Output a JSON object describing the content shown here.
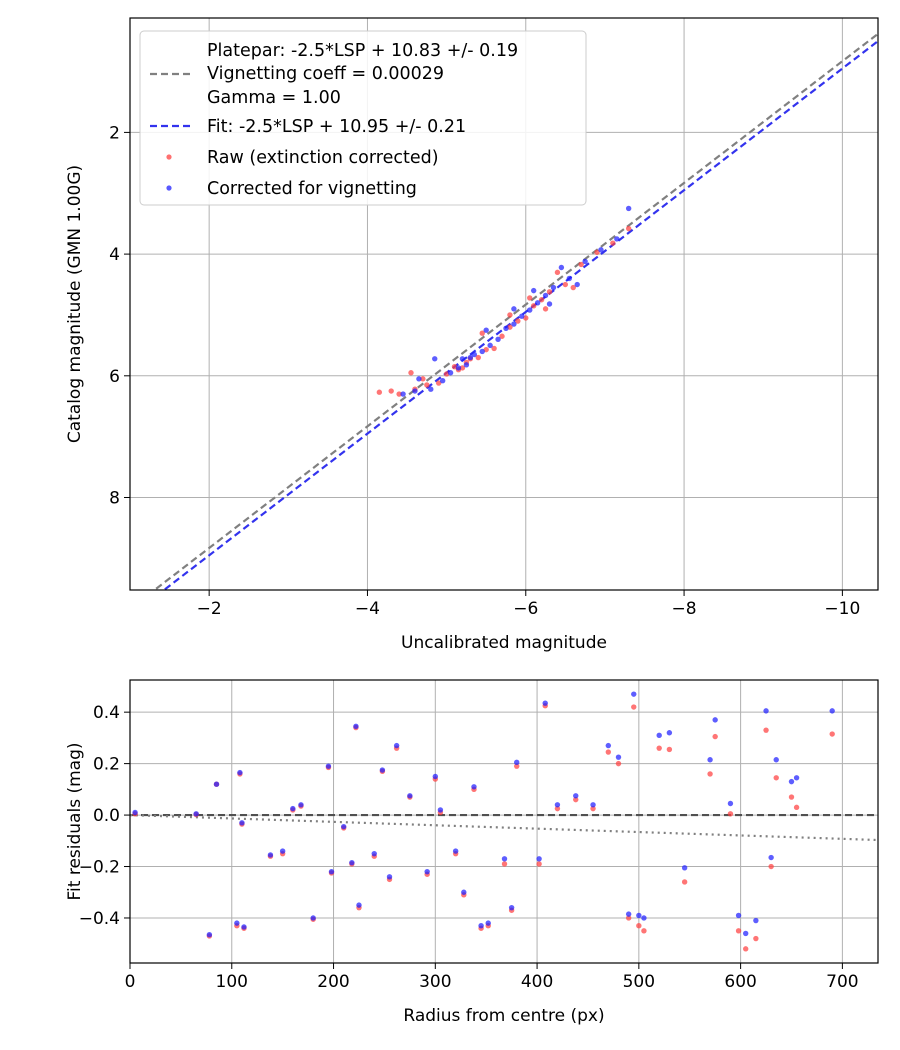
{
  "chart_data": [
    {
      "type": "scatter",
      "xlabel": "Uncalibrated magnitude",
      "ylabel": "Catalog magnitude (GMN 1.00G)",
      "xlim": [
        -1.0,
        -10.45
      ],
      "ylim": [
        9.52,
        0.12
      ],
      "xticks": [
        -2,
        -4,
        -6,
        -8,
        -10
      ],
      "xtick_labels": [
        "−2",
        "−4",
        "−6",
        "−8",
        "−10"
      ],
      "yticks": [
        2,
        4,
        6,
        8
      ],
      "ytick_labels": [
        "2",
        "4",
        "6",
        "8"
      ],
      "grid": true,
      "legend_position": "top-left",
      "legend": {
        "platepar_lines": [
          "Platepar: -2.5*LSP + 10.83 +/- 0.19",
          "Vignetting coeff = 0.00029",
          "Gamma = 1.00"
        ],
        "fit": "Fit: -2.5*LSP + 10.95 +/- 0.21",
        "raw": "Raw (extinction corrected)",
        "corrected": "Corrected for vignetting"
      },
      "lines": [
        {
          "name": "Platepar",
          "slope": -2.5,
          "coef": 0.4,
          "zero_point": 10.83,
          "color": "#808080",
          "style": "dashed"
        },
        {
          "name": "Fit",
          "slope": -2.5,
          "coef": 0.4,
          "zero_point": 10.95,
          "color": "#3333ee",
          "style": "dashed"
        }
      ],
      "series": [
        {
          "name": "Raw (extinction corrected)",
          "color": "#ff4040",
          "x": [
            -4.15,
            -4.3,
            -4.6,
            -4.75,
            -4.9,
            -5.0,
            -5.1,
            -5.2,
            -5.3,
            -5.4,
            -5.5,
            -5.6,
            -5.7,
            -5.8,
            -5.9,
            -6.0,
            -6.1,
            -6.2,
            -6.3,
            -6.5,
            -6.7,
            -6.9,
            -7.1,
            -7.3,
            -4.4,
            -4.7,
            -5.25,
            -5.8,
            -6.05,
            -6.4,
            -4.55,
            -5.15,
            -5.45,
            -6.25,
            -6.6
          ],
          "y": [
            6.27,
            6.25,
            6.22,
            6.15,
            6.12,
            5.97,
            5.85,
            5.87,
            5.72,
            5.7,
            5.57,
            5.55,
            5.35,
            5.2,
            5.1,
            5.05,
            4.85,
            4.75,
            4.62,
            4.5,
            4.17,
            3.97,
            3.82,
            3.58,
            6.3,
            6.05,
            5.78,
            5.0,
            4.72,
            4.3,
            5.95,
            5.9,
            5.3,
            4.9,
            4.55
          ]
        },
        {
          "name": "Corrected for vignetting",
          "color": "#2020ff",
          "x": [
            -4.45,
            -4.6,
            -4.8,
            -4.95,
            -5.05,
            -5.15,
            -5.25,
            -5.35,
            -5.45,
            -5.55,
            -5.65,
            -5.75,
            -5.85,
            -5.95,
            -6.05,
            -6.15,
            -6.25,
            -6.35,
            -6.55,
            -6.75,
            -6.95,
            -7.15,
            -7.3,
            -4.65,
            -4.85,
            -5.3,
            -5.85,
            -6.1,
            -6.45,
            -5.2,
            -5.5,
            -6.3,
            -6.65
          ],
          "y": [
            6.3,
            6.25,
            6.22,
            6.08,
            5.95,
            5.87,
            5.82,
            5.65,
            5.6,
            5.5,
            5.4,
            5.22,
            5.15,
            5.02,
            4.92,
            4.8,
            4.68,
            4.55,
            4.4,
            4.12,
            3.93,
            3.75,
            3.25,
            6.05,
            5.72,
            5.7,
            4.9,
            4.6,
            4.22,
            5.72,
            5.25,
            4.82,
            4.5
          ]
        }
      ]
    },
    {
      "type": "scatter",
      "xlabel": "Radius from centre (px)",
      "ylabel": "Fit residuals (mag)",
      "xlim": [
        0,
        735
      ],
      "ylim": [
        -0.575,
        0.525
      ],
      "xticks": [
        0,
        100,
        200,
        300,
        400,
        500,
        600,
        700
      ],
      "xtick_labels": [
        "0",
        "100",
        "200",
        "300",
        "400",
        "500",
        "600",
        "700"
      ],
      "yticks": [
        0.4,
        0.2,
        0.0,
        -0.2,
        -0.4
      ],
      "ytick_labels": [
        "0.4",
        "0.2",
        "0.0",
        "−0.2",
        "−0.4"
      ],
      "grid": true,
      "lines": [
        {
          "name": "zero",
          "x": [
            0,
            735
          ],
          "y": [
            0,
            0
          ],
          "color": "#505050",
          "style": "dashed"
        },
        {
          "name": "vignetting trend",
          "x": [
            0,
            735
          ],
          "y": [
            0,
            -0.097
          ],
          "color": "#808080",
          "style": "dotted"
        }
      ],
      "series": [
        {
          "name": "Raw",
          "color": "#ff4040",
          "x": [
            5,
            65,
            78,
            85,
            105,
            108,
            110,
            112,
            138,
            150,
            160,
            168,
            180,
            195,
            198,
            210,
            218,
            222,
            225,
            240,
            248,
            255,
            262,
            275,
            292,
            300,
            305,
            320,
            328,
            338,
            345,
            352,
            368,
            375,
            380,
            402,
            408,
            420,
            438,
            455,
            470,
            480,
            490,
            495,
            500,
            505,
            520,
            530,
            545,
            570,
            575,
            590,
            598,
            605,
            615,
            625,
            630,
            635,
            650,
            655,
            690
          ],
          "y": [
            0.005,
            0.002,
            -0.47,
            0.12,
            -0.43,
            0.16,
            -0.035,
            -0.44,
            -0.16,
            -0.15,
            0.02,
            0.035,
            -0.405,
            0.185,
            -0.225,
            -0.05,
            -0.19,
            0.34,
            -0.36,
            -0.16,
            0.17,
            -0.25,
            0.26,
            0.07,
            -0.23,
            0.14,
            0.01,
            -0.15,
            -0.31,
            0.1,
            -0.44,
            -0.43,
            -0.19,
            -0.37,
            0.19,
            -0.19,
            0.425,
            0.025,
            0.06,
            0.025,
            0.245,
            0.2,
            -0.4,
            0.42,
            -0.43,
            -0.45,
            0.26,
            0.255,
            -0.26,
            0.16,
            0.305,
            0.005,
            -0.45,
            -0.52,
            -0.48,
            0.33,
            -0.2,
            0.145,
            0.07,
            0.03,
            0.315
          ]
        },
        {
          "name": "Corrected",
          "color": "#2020ff",
          "x": [
            5,
            65,
            78,
            85,
            105,
            108,
            110,
            112,
            138,
            150,
            160,
            168,
            180,
            195,
            198,
            210,
            218,
            222,
            225,
            240,
            248,
            255,
            262,
            275,
            292,
            300,
            305,
            320,
            328,
            338,
            345,
            352,
            368,
            375,
            380,
            402,
            408,
            420,
            438,
            455,
            470,
            480,
            490,
            495,
            500,
            505,
            520,
            530,
            545,
            570,
            575,
            590,
            598,
            605,
            615,
            625,
            630,
            635,
            650,
            655,
            690
          ],
          "y": [
            0.01,
            0.005,
            -0.465,
            0.12,
            -0.42,
            0.165,
            -0.03,
            -0.435,
            -0.155,
            -0.14,
            0.025,
            0.04,
            -0.4,
            0.19,
            -0.22,
            -0.045,
            -0.185,
            0.345,
            -0.35,
            -0.15,
            0.175,
            -0.24,
            0.27,
            0.075,
            -0.22,
            0.15,
            0.02,
            -0.14,
            -0.3,
            0.11,
            -0.43,
            -0.42,
            -0.17,
            -0.36,
            0.205,
            -0.17,
            0.435,
            0.04,
            0.075,
            0.04,
            0.27,
            0.225,
            -0.385,
            0.47,
            -0.39,
            -0.4,
            0.31,
            0.32,
            -0.205,
            0.215,
            0.37,
            0.045,
            -0.39,
            -0.46,
            -0.41,
            0.405,
            -0.165,
            0.215,
            0.13,
            0.145,
            0.405
          ]
        }
      ]
    }
  ]
}
